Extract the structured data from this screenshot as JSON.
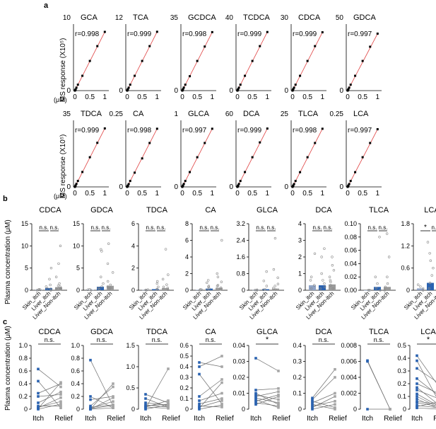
{
  "panel_labels": [
    "a",
    "b",
    "c"
  ],
  "panel_a": {
    "ylabel": "MS response (X10⁵)",
    "x_unit": "(μM)",
    "x_ticks": [
      "0",
      "0.5",
      "1"
    ],
    "fit_color": "#e04040",
    "point_color": "#000000"
  },
  "panel_b": {
    "ylabel": "Plasma concentration (μM)",
    "groups": [
      "Skin_itch",
      "Liver_itch",
      "Liver_Non-itch"
    ],
    "bar_colors": [
      "#8fa3c6",
      "#2a62b0",
      "#9a9a9a"
    ]
  },
  "panel_c": {
    "ylabel": "Plasma concentration (μM)",
    "x_labels": [
      "Itch",
      "Relief"
    ],
    "itch_color": "#2a62b0",
    "relief_color": "#a6a6a6"
  },
  "chart_data": [
    {
      "type": "scatter",
      "panel": "a",
      "title": "GCA",
      "ymax_label": "10",
      "r": "r=0.998",
      "x": [
        0,
        0.0125,
        0.025,
        0.05,
        0.1,
        0.25,
        0.5,
        0.75,
        1
      ],
      "y": [
        0,
        0.1,
        0.2,
        0.5,
        1.0,
        2.5,
        5.0,
        7.5,
        9.9
      ]
    },
    {
      "type": "scatter",
      "panel": "a",
      "title": "TCA",
      "ymax_label": "12",
      "r": "r=0.999",
      "x": [
        0,
        0.0125,
        0.025,
        0.05,
        0.1,
        0.25,
        0.5,
        0.75,
        1
      ],
      "y": [
        0,
        0.15,
        0.3,
        0.6,
        1.2,
        3.0,
        6.0,
        9.0,
        11.9
      ]
    },
    {
      "type": "scatter",
      "panel": "a",
      "title": "GCDCA",
      "ymax_label": "35",
      "r": "r=0.998",
      "x": [
        0,
        0.0125,
        0.025,
        0.05,
        0.1,
        0.25,
        0.5,
        0.75,
        1
      ],
      "y": [
        0,
        0.4,
        0.9,
        1.8,
        3.5,
        8.5,
        17.5,
        26,
        34.5
      ]
    },
    {
      "type": "scatter",
      "panel": "a",
      "title": "TCDCA",
      "ymax_label": "40",
      "r": "r=0.999",
      "x": [
        0,
        0.0125,
        0.025,
        0.05,
        0.1,
        0.25,
        0.5,
        0.75,
        1
      ],
      "y": [
        0,
        0.5,
        1.0,
        2.0,
        4.0,
        10,
        20,
        30,
        39.5
      ]
    },
    {
      "type": "scatter",
      "panel": "a",
      "title": "CDCA",
      "ymax_label": "30",
      "r": "r=0.999",
      "x": [
        0,
        0.0125,
        0.025,
        0.05,
        0.1,
        0.25,
        0.5,
        0.75,
        1
      ],
      "y": [
        0,
        0.4,
        0.8,
        1.5,
        3.0,
        7.5,
        15,
        22.5,
        29.5
      ]
    },
    {
      "type": "scatter",
      "panel": "a",
      "title": "GDCA",
      "ymax_label": "50",
      "r": "r=0.997",
      "x": [
        0,
        0.0125,
        0.025,
        0.05,
        0.1,
        0.25,
        0.5,
        0.75,
        1
      ],
      "y": [
        0,
        0.6,
        1.2,
        2.5,
        5.0,
        12.5,
        25,
        37,
        48
      ]
    },
    {
      "type": "scatter",
      "panel": "a",
      "title": "TDCA",
      "ymax_label": "35",
      "r": "r=0.999",
      "x": [
        0,
        0.0125,
        0.025,
        0.05,
        0.1,
        0.25,
        0.5,
        0.75,
        1
      ],
      "y": [
        0,
        0.4,
        0.9,
        1.8,
        3.5,
        8.8,
        17.5,
        26,
        34.5
      ]
    },
    {
      "type": "scatter",
      "panel": "a",
      "title": "CA",
      "ymax_label": "0.25",
      "r": "r=0.998",
      "x": [
        0,
        0.0125,
        0.025,
        0.05,
        0.1,
        0.25,
        0.5,
        0.75,
        1
      ],
      "y": [
        0,
        0.003,
        0.006,
        0.012,
        0.025,
        0.06,
        0.12,
        0.185,
        0.245
      ]
    },
    {
      "type": "scatter",
      "panel": "a",
      "title": "GLCA",
      "ymax_label": "1",
      "r": "r=0.997",
      "x": [
        0,
        0.0125,
        0.025,
        0.05,
        0.1,
        0.25,
        0.5,
        0.75,
        1
      ],
      "y": [
        0,
        0.013,
        0.025,
        0.05,
        0.1,
        0.25,
        0.5,
        0.74,
        0.98
      ]
    },
    {
      "type": "scatter",
      "panel": "a",
      "title": "DCA",
      "ymax_label": "60",
      "r": "r=0.999",
      "x": [
        0,
        0.0125,
        0.025,
        0.05,
        0.1,
        0.25,
        0.5,
        0.75,
        1
      ],
      "y": [
        0,
        0.8,
        1.5,
        3,
        6,
        15,
        30,
        45,
        59
      ]
    },
    {
      "type": "scatter",
      "panel": "a",
      "title": "TLCA",
      "ymax_label": "25",
      "r": "r=0.998",
      "x": [
        0,
        0.0125,
        0.025,
        0.05,
        0.1,
        0.25,
        0.5,
        0.75,
        1
      ],
      "y": [
        0,
        0.3,
        0.6,
        1.2,
        2.5,
        6.2,
        12.5,
        18.5,
        24.5
      ]
    },
    {
      "type": "scatter",
      "panel": "a",
      "title": "LCA",
      "ymax_label": "0.25",
      "r": "r=0.997",
      "x": [
        0,
        0.0125,
        0.025,
        0.05,
        0.1,
        0.25,
        0.5,
        0.75,
        1
      ],
      "y": [
        0,
        0.003,
        0.006,
        0.012,
        0.025,
        0.062,
        0.125,
        0.185,
        0.243
      ]
    },
    {
      "type": "bar",
      "panel": "b",
      "title": "CDCA",
      "ylim": [
        0,
        15
      ],
      "yticks": [
        "0",
        "5",
        "10",
        "15"
      ],
      "means": [
        0.1,
        0.5,
        0.7
      ],
      "sig": [
        "n.s.",
        "n.s."
      ],
      "points": [
        [
          0,
          0.1,
          0.2,
          0.1
        ],
        [
          0,
          0.3,
          0.8,
          2.5,
          5.0,
          0.4,
          1.2
        ],
        [
          0.2,
          0.5,
          1.5,
          3,
          6,
          10,
          0.8,
          0.3,
          1.0
        ]
      ]
    },
    {
      "type": "bar",
      "panel": "b",
      "title": "GDCA",
      "ylim": [
        0,
        15
      ],
      "yticks": [
        "0",
        "5",
        "10",
        "15"
      ],
      "means": [
        0.1,
        0.8,
        1.0
      ],
      "sig": [
        "n.s.",
        "n.s."
      ],
      "points": [
        [
          0,
          0.1,
          0.2
        ],
        [
          0.2,
          0.5,
          1.5,
          3,
          8.8,
          9.2,
          0.8
        ],
        [
          0.3,
          0.8,
          2,
          4,
          6,
          10.5,
          1.2,
          0.5
        ]
      ]
    },
    {
      "type": "bar",
      "panel": "b",
      "title": "TDCA",
      "ylim": [
        0,
        6
      ],
      "yticks": [
        "0",
        "2",
        "4",
        "6"
      ],
      "means": [
        0.02,
        0.1,
        0.2
      ],
      "sig": [
        "n.s.",
        "n.s."
      ],
      "points": [
        [
          0,
          0.02,
          0.05
        ],
        [
          0.05,
          0.1,
          0.3,
          0.6,
          0.8
        ],
        [
          0.05,
          0.2,
          0.5,
          1.0,
          1.4,
          3.7,
          0.3
        ]
      ]
    },
    {
      "type": "bar",
      "panel": "b",
      "title": "CA",
      "ylim": [
        0,
        8
      ],
      "yticks": [
        "0",
        "2",
        "4",
        "6",
        "8"
      ],
      "means": [
        0.05,
        0.2,
        0.3
      ],
      "sig": [
        "n.s.",
        "n.s."
      ],
      "points": [
        [
          0,
          0.05,
          0.1
        ],
        [
          0.05,
          0.2,
          0.5,
          0.9,
          1.2,
          0.4
        ],
        [
          0.1,
          0.3,
          0.6,
          1.0,
          1.6,
          2.0,
          6.0,
          0.5
        ]
      ]
    },
    {
      "type": "bar",
      "panel": "b",
      "title": "GLCA",
      "ylim": [
        0,
        3.2
      ],
      "yticks": [
        "0",
        "0.8",
        "1.6",
        "2.4",
        "3.2"
      ],
      "means": [
        0.01,
        0.05,
        0.08
      ],
      "sig": [
        "n.s.",
        "n.s."
      ],
      "points": [
        [
          0,
          0.01,
          0.02
        ],
        [
          0.02,
          0.05,
          0.2,
          0.45,
          0.9
        ],
        [
          0.03,
          0.1,
          0.3,
          0.6,
          1.0,
          2.5,
          0.2
        ]
      ]
    },
    {
      "type": "bar",
      "panel": "b",
      "title": "DCA",
      "ylim": [
        0,
        4
      ],
      "yticks": [
        "0",
        "1",
        "2",
        "3",
        "4"
      ],
      "means": [
        0.3,
        0.3,
        0.35
      ],
      "sig": [
        "n.s.",
        "n.s."
      ],
      "points": [
        [
          0.1,
          0.3,
          0.6,
          0.8,
          2.2
        ],
        [
          0.1,
          0.2,
          0.4,
          0.6,
          1.0,
          2.0,
          2.5
        ],
        [
          0.1,
          0.3,
          0.5,
          0.8,
          1.2,
          1.5,
          2.0,
          0.6
        ]
      ]
    },
    {
      "type": "bar",
      "panel": "b",
      "title": "TLCA",
      "ylim": [
        0,
        0.1
      ],
      "yticks": [
        "0.00",
        "0.02",
        "0.04",
        "0.06",
        "0.08",
        "0.10"
      ],
      "means": [
        0.0,
        0.005,
        0.005
      ],
      "sig": [
        "n.s.",
        "n.s."
      ],
      "points": [
        [
          0,
          0
        ],
        [
          0,
          0.003,
          0.01,
          0.02,
          0.08
        ],
        [
          0,
          0.005,
          0.01,
          0.02,
          0.05,
          0.085
        ]
      ]
    },
    {
      "type": "bar",
      "panel": "b",
      "title": "LCA",
      "ylim": [
        0,
        1.8
      ],
      "yticks": [
        "0",
        "0.6",
        "1.2",
        "1.8"
      ],
      "means": [
        0.05,
        0.2,
        0.25
      ],
      "sig": [
        "*",
        "n.s."
      ],
      "points": [
        [
          0,
          0.05,
          0.1,
          0.15
        ],
        [
          0.05,
          0.2,
          0.4,
          0.6,
          0.8,
          1.0,
          1.3
        ],
        [
          0.1,
          0.2,
          0.4,
          0.6,
          0.8,
          1.0,
          1.2,
          1.6,
          0.3
        ]
      ]
    },
    {
      "type": "line",
      "panel": "c",
      "title": "CDCA",
      "ylim": [
        0,
        1.0
      ],
      "yticks": [
        "0",
        "0.2",
        "0.4",
        "0.6",
        "0.8",
        "1.0"
      ],
      "sig": "n.s.",
      "pairs": [
        [
          0.63,
          0.35
        ],
        [
          0.44,
          0.02
        ],
        [
          0.25,
          0.4
        ],
        [
          0.2,
          0.23
        ],
        [
          0.1,
          0.27
        ],
        [
          0.05,
          0.05
        ],
        [
          0.02,
          0.18
        ],
        [
          0.0,
          0.08
        ],
        [
          0.01,
          0.42
        ],
        [
          0.03,
          0.12
        ]
      ]
    },
    {
      "type": "line",
      "panel": "c",
      "title": "GDCA",
      "ylim": [
        0,
        1.0
      ],
      "yticks": [
        "0",
        "0.2",
        "0.4",
        "0.6",
        "0.8",
        "1.0"
      ],
      "sig": "n.s.",
      "pairs": [
        [
          0.77,
          0.05
        ],
        [
          0.2,
          0.02
        ],
        [
          0.15,
          0.2
        ],
        [
          0.05,
          0.35
        ],
        [
          0.02,
          0.12
        ],
        [
          0.0,
          0.4
        ],
        [
          0.01,
          0.06
        ],
        [
          0.0,
          0.02
        ],
        [
          0.03,
          0.07
        ],
        [
          0.0,
          0.18
        ]
      ]
    },
    {
      "type": "line",
      "panel": "c",
      "title": "TDCA",
      "ylim": [
        0,
        1.5
      ],
      "yticks": [
        "0",
        "0.5",
        "1.0",
        "1.5"
      ],
      "sig": "n.s.",
      "pairs": [
        [
          0.35,
          0.15
        ],
        [
          0.25,
          0.05
        ],
        [
          0.15,
          0.1
        ],
        [
          0.1,
          0.05
        ],
        [
          0.05,
          0.2
        ],
        [
          0.0,
          0.1
        ],
        [
          0.02,
          0.95
        ],
        [
          0.08,
          0.12
        ],
        [
          0.05,
          0.02
        ]
      ]
    },
    {
      "type": "line",
      "panel": "c",
      "title": "CA",
      "ylim": [
        0,
        0.6
      ],
      "yticks": [
        "0",
        "0.1",
        "0.2",
        "0.3",
        "0.4",
        "0.5",
        "0.6"
      ],
      "sig": "n.s.",
      "pairs": [
        [
          0.44,
          0.4
        ],
        [
          0.4,
          0.5
        ],
        [
          0.33,
          0.05
        ],
        [
          0.12,
          0.28
        ],
        [
          0.08,
          0.15
        ],
        [
          0.05,
          0.1
        ],
        [
          0.02,
          0.08
        ],
        [
          0.0,
          0.04
        ],
        [
          0.01,
          0.25
        ],
        [
          0.03,
          0.02
        ]
      ]
    },
    {
      "type": "line",
      "panel": "c",
      "title": "GLCA",
      "ylim": [
        0,
        0.04
      ],
      "yticks": [
        "0",
        "0.01",
        "0.02",
        "0.03",
        "0.04"
      ],
      "sig": "*",
      "pairs": [
        [
          0.032,
          0.024
        ],
        [
          0.012,
          0.013
        ],
        [
          0.01,
          0.003
        ],
        [
          0.009,
          0.006
        ],
        [
          0.008,
          0.011
        ],
        [
          0.007,
          0.004
        ],
        [
          0.006,
          0.001
        ],
        [
          0.005,
          0.009
        ],
        [
          0.004,
          0.002
        ],
        [
          0.003,
          0.008
        ]
      ]
    },
    {
      "type": "line",
      "panel": "c",
      "title": "DCA",
      "ylim": [
        0,
        0.4
      ],
      "yticks": [
        "0",
        "0.1",
        "0.2",
        "0.3",
        "0.4"
      ],
      "sig": "n.s.",
      "pairs": [
        [
          0.07,
          0.25
        ],
        [
          0.06,
          0.2
        ],
        [
          0.05,
          0.01
        ],
        [
          0.04,
          0.1
        ],
        [
          0.02,
          0.05
        ],
        [
          0.01,
          0.08
        ],
        [
          0.0,
          0.03
        ],
        [
          0.03,
          0.0
        ]
      ]
    },
    {
      "type": "line",
      "panel": "c",
      "title": "TLCA",
      "ylim": [
        0,
        0.008
      ],
      "yticks": [
        "0",
        "0.002",
        "0.004",
        "0.006",
        "0.008"
      ],
      "sig": "n.s.",
      "pairs": [
        [
          0.0061,
          0.0
        ],
        [
          0.006,
          0.0
        ],
        [
          0.0,
          0.0
        ]
      ]
    },
    {
      "type": "line",
      "panel": "c",
      "title": "LCA",
      "ylim": [
        0,
        0.5
      ],
      "yticks": [
        "0",
        "0.1",
        "0.2",
        "0.3",
        "0.4",
        "0.5"
      ],
      "sig": "*",
      "pairs": [
        [
          0.42,
          0.17
        ],
        [
          0.38,
          0.05
        ],
        [
          0.32,
          0.2
        ],
        [
          0.24,
          0.1
        ],
        [
          0.2,
          0.12
        ],
        [
          0.17,
          0.03
        ],
        [
          0.15,
          0.08
        ],
        [
          0.12,
          0.02
        ],
        [
          0.1,
          0.01
        ],
        [
          0.08,
          0.0
        ],
        [
          0.06,
          0.04
        ],
        [
          0.05,
          0.02
        ],
        [
          0.03,
          0.01
        ],
        [
          0.02,
          0.06
        ],
        [
          0.01,
          0.0
        ]
      ]
    }
  ]
}
